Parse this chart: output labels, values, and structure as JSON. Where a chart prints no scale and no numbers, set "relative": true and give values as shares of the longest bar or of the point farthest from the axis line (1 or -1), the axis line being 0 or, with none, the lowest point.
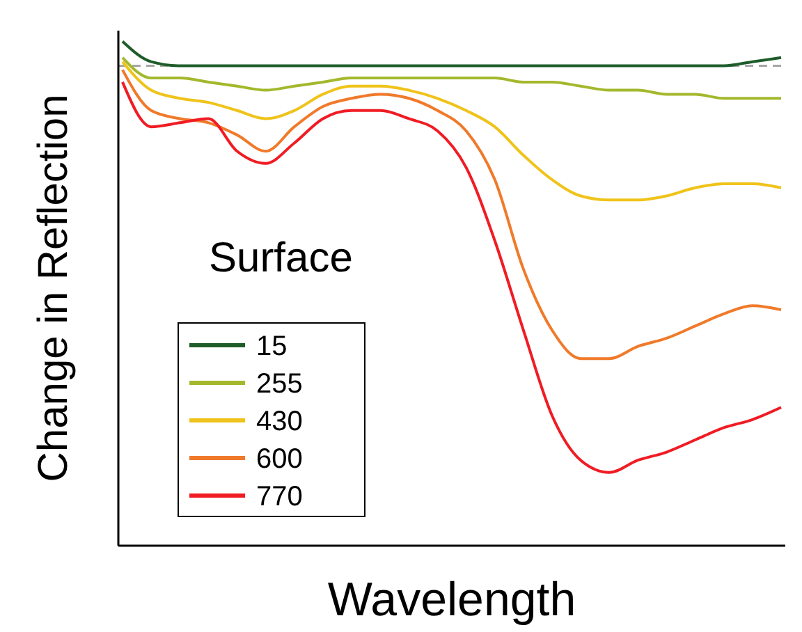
{
  "chart_data": {
    "type": "line",
    "relative": true,
    "xlabel": "Wavelength",
    "ylabel": "Change in Reflection",
    "annotations": [
      "Surface"
    ],
    "legend": "bottom left",
    "line_style": "solid",
    "categories": [
      null,
      null,
      null,
      null,
      null,
      null,
      null,
      null,
      null,
      null,
      null,
      null,
      null,
      null,
      null,
      null,
      null,
      null,
      null,
      null,
      null,
      null,
      null,
      null
    ],
    "ref_lines": [
      {
        "axis": "y",
        "value": 0,
        "color": "#a6a6a6",
        "line_style": "dashed"
      }
    ],
    "series": [
      {
        "name": "15",
        "color": "#1e5c2a",
        "values": [
          0.06,
          0.01,
          0,
          0,
          0,
          0,
          0,
          0,
          0,
          0,
          0,
          0,
          0,
          0,
          0,
          0,
          0,
          0,
          0,
          0,
          0,
          0,
          0.01,
          0.02
        ]
      },
      {
        "name": "255",
        "color": "#a4b82c",
        "values": [
          0.02,
          -0.03,
          -0.03,
          -0.04,
          -0.05,
          -0.06,
          -0.05,
          -0.04,
          -0.03,
          -0.03,
          -0.03,
          -0.03,
          -0.03,
          -0.03,
          -0.04,
          -0.04,
          -0.05,
          -0.06,
          -0.06,
          -0.07,
          -0.07,
          -0.08,
          -0.08,
          -0.08
        ]
      },
      {
        "name": "430",
        "color": "#f0c31a",
        "values": [
          0.01,
          -0.06,
          -0.08,
          -0.09,
          -0.11,
          -0.13,
          -0.11,
          -0.07,
          -0.05,
          -0.05,
          -0.06,
          -0.08,
          -0.11,
          -0.15,
          -0.22,
          -0.28,
          -0.32,
          -0.33,
          -0.33,
          -0.32,
          -0.3,
          -0.29,
          -0.29,
          -0.3
        ]
      },
      {
        "name": "600",
        "color": "#f07a2a",
        "values": [
          -0.01,
          -0.11,
          -0.13,
          -0.14,
          -0.17,
          -0.21,
          -0.15,
          -0.1,
          -0.08,
          -0.07,
          -0.08,
          -0.11,
          -0.16,
          -0.28,
          -0.5,
          -0.65,
          -0.72,
          -0.72,
          -0.69,
          -0.67,
          -0.64,
          -0.61,
          -0.59,
          -0.6
        ]
      },
      {
        "name": "770",
        "color": "#f01c24",
        "values": [
          -0.04,
          -0.15,
          -0.14,
          -0.13,
          -0.21,
          -0.24,
          -0.19,
          -0.13,
          -0.11,
          -0.11,
          -0.13,
          -0.16,
          -0.25,
          -0.43,
          -0.65,
          -0.86,
          -0.97,
          -1.0,
          -0.97,
          -0.95,
          -0.92,
          -0.89,
          -0.87,
          -0.84
        ]
      }
    ]
  }
}
